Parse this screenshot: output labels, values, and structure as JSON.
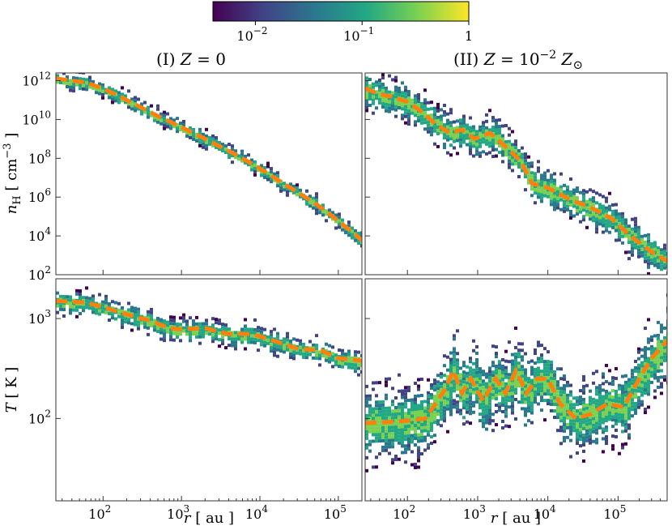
{
  "colorbar": {
    "scale": "log",
    "range": [
      0.004,
      1
    ],
    "ticks": [
      {
        "value": 0.01,
        "base": "10",
        "exp": "−2"
      },
      {
        "value": 0.1,
        "base": "10",
        "exp": "−1"
      },
      {
        "value": 1,
        "base": "1",
        "exp": ""
      }
    ],
    "colors": [
      "#440154",
      "#414487",
      "#2a788e",
      "#22a884",
      "#7ad151",
      "#fde725"
    ]
  },
  "columns": [
    {
      "title": "(I) Z = 0",
      "title_parts": {
        "pre": "(I) ",
        "var": "Z",
        "post": " = 0"
      }
    },
    {
      "title": "(II) Z = 10^-2 Z_sun",
      "title_parts": {
        "pre": "(II) ",
        "var": "Z",
        "eq": " = 10",
        "exp": "−2",
        "var2": " Z",
        "sub": "⊙"
      }
    }
  ],
  "axes": {
    "x": {
      "label": "r [ au ]",
      "label_var": "r",
      "label_unit": " [ au ]",
      "scale": "log",
      "range_left": [
        25,
        200000
      ],
      "range_right": [
        25,
        500000
      ],
      "ticks": [
        {
          "value": 100,
          "exp": "2"
        },
        {
          "value": 1000,
          "exp": "3"
        },
        {
          "value": 10000,
          "exp": "4"
        },
        {
          "value": 100000,
          "exp": "5"
        }
      ]
    },
    "y_top": {
      "label": "n_H [ cm^-3 ]",
      "label_var": "n",
      "label_sub": "H",
      "label_unit": " [ cm",
      "label_exp": "−3",
      "label_end": " ]",
      "scale": "log",
      "range": [
        100,
        2500000000000.0
      ],
      "ticks": [
        {
          "value": 100,
          "exp": "2"
        },
        {
          "value": 10000,
          "exp": "4"
        },
        {
          "value": 1000000,
          "exp": "6"
        },
        {
          "value": 100000000,
          "exp": "8"
        },
        {
          "value": 10000000000.0,
          "exp": "10"
        },
        {
          "value": 1000000000000.0,
          "exp": "12"
        }
      ]
    },
    "y_bottom": {
      "label": "T [ K ]",
      "label_var": "T",
      "label_unit": " [ K ]",
      "scale": "log",
      "range": [
        15,
        2500
      ],
      "ticks": [
        {
          "value": 100,
          "exp": "2"
        },
        {
          "value": 1000,
          "exp": "3"
        }
      ]
    }
  },
  "mean_line_color": "#ff7f0e",
  "chart_data": [
    {
      "id": "nH_Z0",
      "type": "heatmap",
      "title": "(I) Z = 0",
      "xlabel": "r [ au ]",
      "ylabel": "n_H [ cm^-3 ]",
      "xlim": [
        25,
        200000
      ],
      "ylim": [
        100,
        2500000000000.0
      ],
      "spread_dex": 0.35,
      "mean_profile": {
        "x": [
          25,
          60,
          100,
          200,
          500,
          1000,
          2000,
          5000,
          10000,
          20000,
          50000,
          100000,
          200000
        ],
        "y": [
          1300000000000.0,
          800000000000.0,
          400000000000.0,
          100000000000.0,
          15000000000.0,
          4000000000.0,
          1000000000.0,
          150000000.0,
          30000000.0,
          5000000.0,
          500000.0,
          60000.0,
          6000.0
        ]
      }
    },
    {
      "id": "nH_Z2",
      "type": "heatmap",
      "title": "(II) Z = 10^-2 Z_sun",
      "xlabel": "r [ au ]",
      "ylabel": "n_H [ cm^-3 ]",
      "xlim": [
        25,
        500000
      ],
      "ylim": [
        100,
        2500000000000.0
      ],
      "spread_dex": 0.8,
      "mean_profile": {
        "x": [
          25,
          40,
          60,
          100,
          150,
          250,
          400,
          600,
          900,
          1500,
          2500,
          4000,
          6000,
          10000,
          20000,
          40000,
          80000,
          150000,
          300000,
          500000
        ],
        "y": [
          400000000000.0,
          200000000000.0,
          150000000000.0,
          80000000000.0,
          30000000000.0,
          6000000000.0,
          2000000000.0,
          3000000000.0,
          1000000000.0,
          2000000000.0,
          400000000.0,
          80000000.0,
          5000000.0,
          3000000.0,
          800000.0,
          300000.0,
          80000.0,
          10000.0,
          1500.0,
          500
        ]
      }
    },
    {
      "id": "T_Z0",
      "type": "heatmap",
      "title": "(I) Z = 0",
      "xlabel": "r [ au ]",
      "ylabel": "T [ K ]",
      "xlim": [
        25,
        200000
      ],
      "ylim": [
        15,
        2500
      ],
      "spread_dex": 0.1,
      "mean_profile": {
        "x": [
          25,
          60,
          100,
          200,
          400,
          700,
          1000,
          2000,
          4000,
          8000,
          15000,
          30000,
          60000,
          100000,
          200000
        ],
        "y": [
          1500,
          1450,
          1300,
          1100,
          950,
          800,
          780,
          800,
          700,
          700,
          600,
          500,
          480,
          400,
          380
        ]
      }
    },
    {
      "id": "T_Z2",
      "type": "heatmap",
      "title": "(II) Z = 10^-2 Z_sun",
      "xlabel": "r [ au ]",
      "ylabel": "T [ K ]",
      "xlim": [
        25,
        500000
      ],
      "ylim": [
        15,
        2500
      ],
      "spread_dex": 0.3,
      "mean_profile": {
        "x": [
          25,
          50,
          100,
          180,
          250,
          350,
          450,
          600,
          800,
          1200,
          1800,
          2500,
          3500,
          5000,
          7000,
          10000,
          15000,
          25000,
          40000,
          70000,
          120000,
          200000,
          300000,
          500000
        ],
        "y": [
          90,
          92,
          95,
          100,
          140,
          200,
          300,
          180,
          250,
          150,
          250,
          180,
          300,
          180,
          250,
          250,
          140,
          100,
          110,
          140,
          130,
          250,
          400,
          600
        ]
      }
    }
  ]
}
